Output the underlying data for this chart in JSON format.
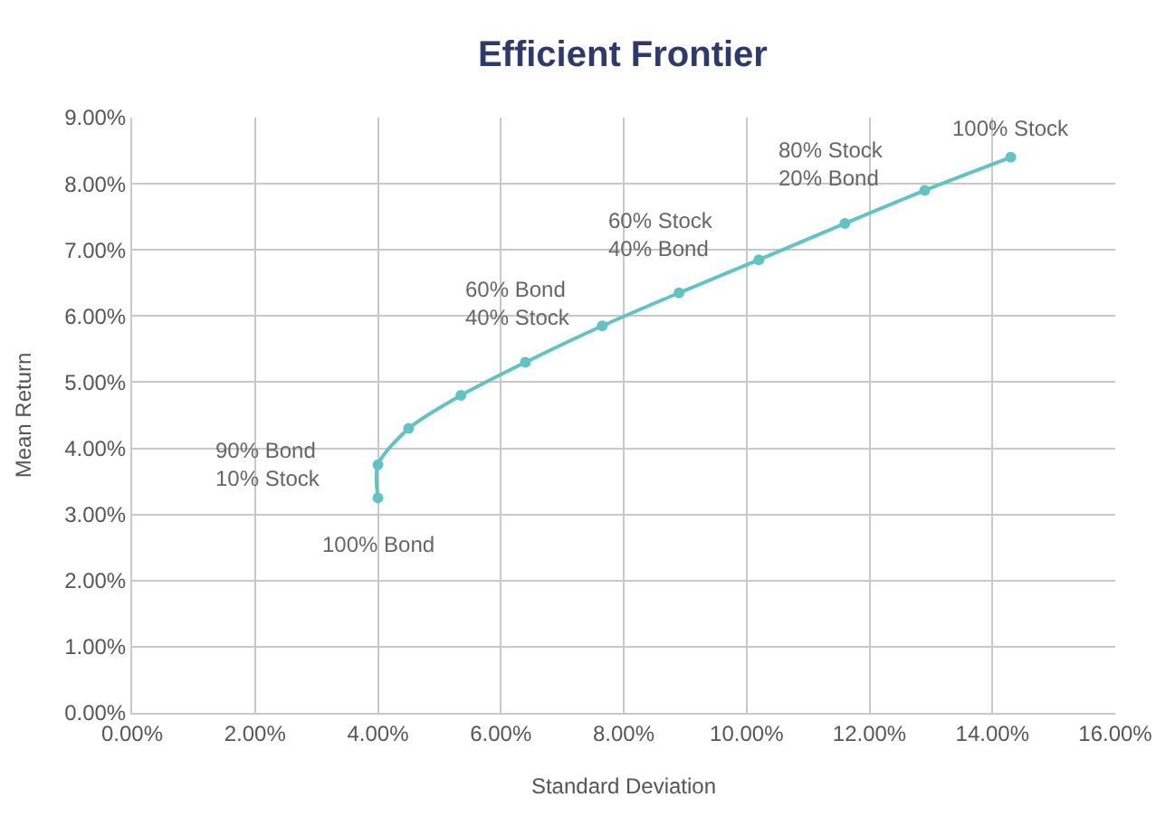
{
  "chart_data": {
    "type": "line",
    "title": "Efficient Frontier",
    "xlabel": "Standard Deviation",
    "ylabel": "Mean Return",
    "x": [
      4.0,
      4.0,
      4.5,
      5.35,
      6.4,
      7.65,
      8.9,
      10.2,
      11.6,
      12.9,
      14.3
    ],
    "series": [
      {
        "color": "#62c3c3",
        "values": [
          3.25,
          3.75,
          4.3,
          4.8,
          5.3,
          5.85,
          6.35,
          6.85,
          7.4,
          7.9,
          8.4
        ]
      }
    ],
    "xlim": [
      0,
      16
    ],
    "ylim": [
      0,
      9
    ],
    "xticks": [
      {
        "value": 0,
        "label": "0.00%"
      },
      {
        "value": 2,
        "label": "2.00%"
      },
      {
        "value": 4,
        "label": "4.00%"
      },
      {
        "value": 6,
        "label": "6.00%"
      },
      {
        "value": 8,
        "label": "8.00%"
      },
      {
        "value": 10,
        "label": "10.00%"
      },
      {
        "value": 12,
        "label": "12.00%"
      },
      {
        "value": 14,
        "label": "14.00%"
      },
      {
        "value": 16,
        "label": "16.00%"
      }
    ],
    "yticks": [
      {
        "value": 0,
        "label": "0.00%"
      },
      {
        "value": 1,
        "label": "1.00%"
      },
      {
        "value": 2,
        "label": "2.00%"
      },
      {
        "value": 3,
        "label": "3.00%"
      },
      {
        "value": 4,
        "label": "4.00%"
      },
      {
        "value": 5,
        "label": "5.00%"
      },
      {
        "value": 6,
        "label": "6.00%"
      },
      {
        "value": 7,
        "label": "7.00%"
      },
      {
        "value": 8,
        "label": "8.00%"
      },
      {
        "value": 9,
        "label": "9.00%"
      }
    ],
    "annotations": [
      {
        "text": "100% Bond",
        "x": 4.0,
        "y": 3.25
      },
      {
        "text": "90% Bond\n10% Stock",
        "x": 4.0,
        "y": 3.75
      },
      {
        "text": "60% Bond\n40% Stock",
        "x": 6.4,
        "y": 5.3
      },
      {
        "text": "60% Stock\n40% Bond",
        "x": 8.9,
        "y": 6.35
      },
      {
        "text": "80% Stock\n20% Bond",
        "x": 11.6,
        "y": 7.4
      },
      {
        "text": "100% Stock",
        "x": 14.3,
        "y": 8.4
      }
    ],
    "grid": true,
    "marker": "circle",
    "line_style": "solid"
  }
}
